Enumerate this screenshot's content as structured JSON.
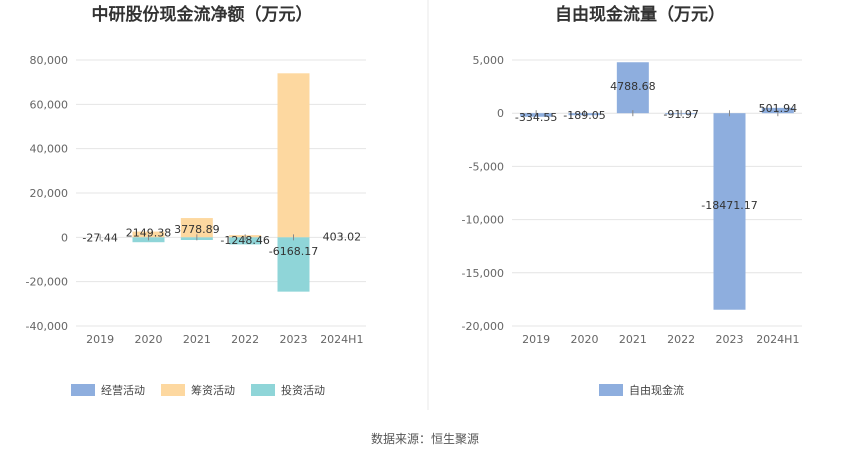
{
  "source_note": "数据来源：恒生聚源",
  "chart_data": [
    {
      "type": "bar",
      "title": "中研股份现金流净额（万元）",
      "categories": [
        "2019",
        "2020",
        "2021",
        "2022",
        "2023",
        "2024H1"
      ],
      "y_ticks": [
        "80,000",
        "60,000",
        "40,000",
        "20,000",
        "0",
        "-20,000",
        "-40,000"
      ],
      "y_tick_values": [
        80000,
        60000,
        40000,
        20000,
        0,
        -20000,
        -40000
      ],
      "ylim": [
        -40000,
        80000
      ],
      "grid": true,
      "legend_position": "bottom",
      "series": [
        {
          "name": "经营活动",
          "color": "#8eaede",
          "values": [
            0,
            0,
            0,
            0,
            0,
            0
          ]
        },
        {
          "name": "筹资活动",
          "color": "#fdd8a0",
          "values": [
            0,
            2600,
            8700,
            1000,
            74000,
            0
          ]
        },
        {
          "name": "投资活动",
          "color": "#8fd5d8",
          "values": [
            0,
            -2200,
            -1200,
            -3200,
            -24500,
            0
          ]
        }
      ],
      "net_labels": [
        "-27.44",
        "2149.38",
        "3778.89",
        "-1248.46",
        "-6168.17",
        "403.02"
      ],
      "net_values": [
        -27.44,
        2149.38,
        3778.89,
        -1248.46,
        -6168.17,
        403.02
      ]
    },
    {
      "type": "bar",
      "title": "自由现金流量（万元）",
      "categories": [
        "2019",
        "2020",
        "2021",
        "2022",
        "2023",
        "2024H1"
      ],
      "y_ticks": [
        "5,000",
        "0",
        "-5,000",
        "-10,000",
        "-15,000",
        "-20,000"
      ],
      "y_tick_values": [
        5000,
        0,
        -5000,
        -10000,
        -15000,
        -20000
      ],
      "ylim": [
        -20000,
        5000
      ],
      "grid": true,
      "legend_position": "bottom",
      "series": [
        {
          "name": "自由现金流",
          "color": "#8eaede",
          "values": [
            -334.55,
            -189.05,
            4788.68,
            -91.97,
            -18471.17,
            501.94
          ]
        }
      ],
      "data_labels": [
        "-334.55",
        "-189.05",
        "4788.68",
        "-91.97",
        "-18471.17",
        "501.94"
      ]
    }
  ]
}
